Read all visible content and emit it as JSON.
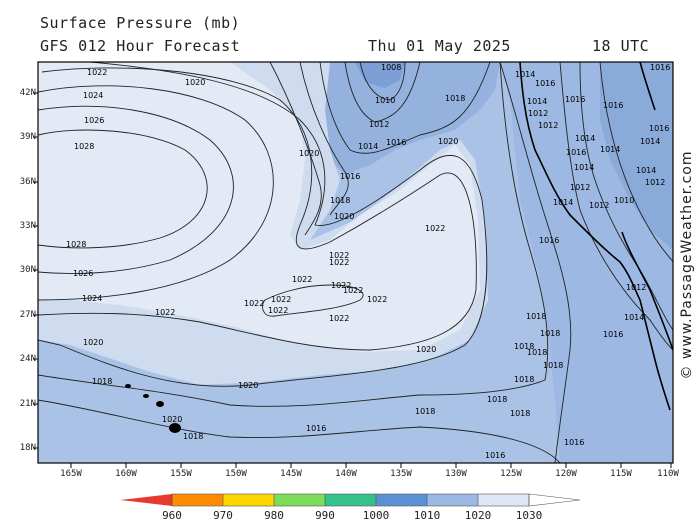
{
  "header": {
    "title_line1": "Surface Pressure (mb)",
    "title_line2": "GFS 012 Hour Forecast",
    "valid_date": "Thu 01 May 2025",
    "valid_time": "18 UTC"
  },
  "credit": "© www.PassageWeather.com",
  "lat_labels": [
    "42N",
    "39N",
    "36N",
    "33N",
    "30N",
    "27N",
    "24N",
    "21N",
    "18N"
  ],
  "lon_labels": [
    "165W",
    "160W",
    "155W",
    "150W",
    "145W",
    "140W",
    "135W",
    "130W",
    "125W",
    "120W",
    "115W",
    "110W"
  ],
  "isobar_labels": {
    "l1028": "1028",
    "l1026": "1026",
    "l1024": "1024",
    "l1022": "1022",
    "l1020": "1020",
    "l1018": "1018",
    "l1016": "1016",
    "l1014": "1014",
    "l1012": "1012",
    "l1010": "1010",
    "l1008": "1008"
  },
  "colorbar": {
    "labels": [
      "960",
      "970",
      "980",
      "990",
      "1000",
      "1010",
      "1020",
      "1030"
    ],
    "colors": [
      "#e8392f",
      "#ff8c00",
      "#ffd700",
      "#7ddc5a",
      "#35c08c",
      "#5b8fd6",
      "#9ab8e2",
      "#dfe7f5"
    ]
  }
}
